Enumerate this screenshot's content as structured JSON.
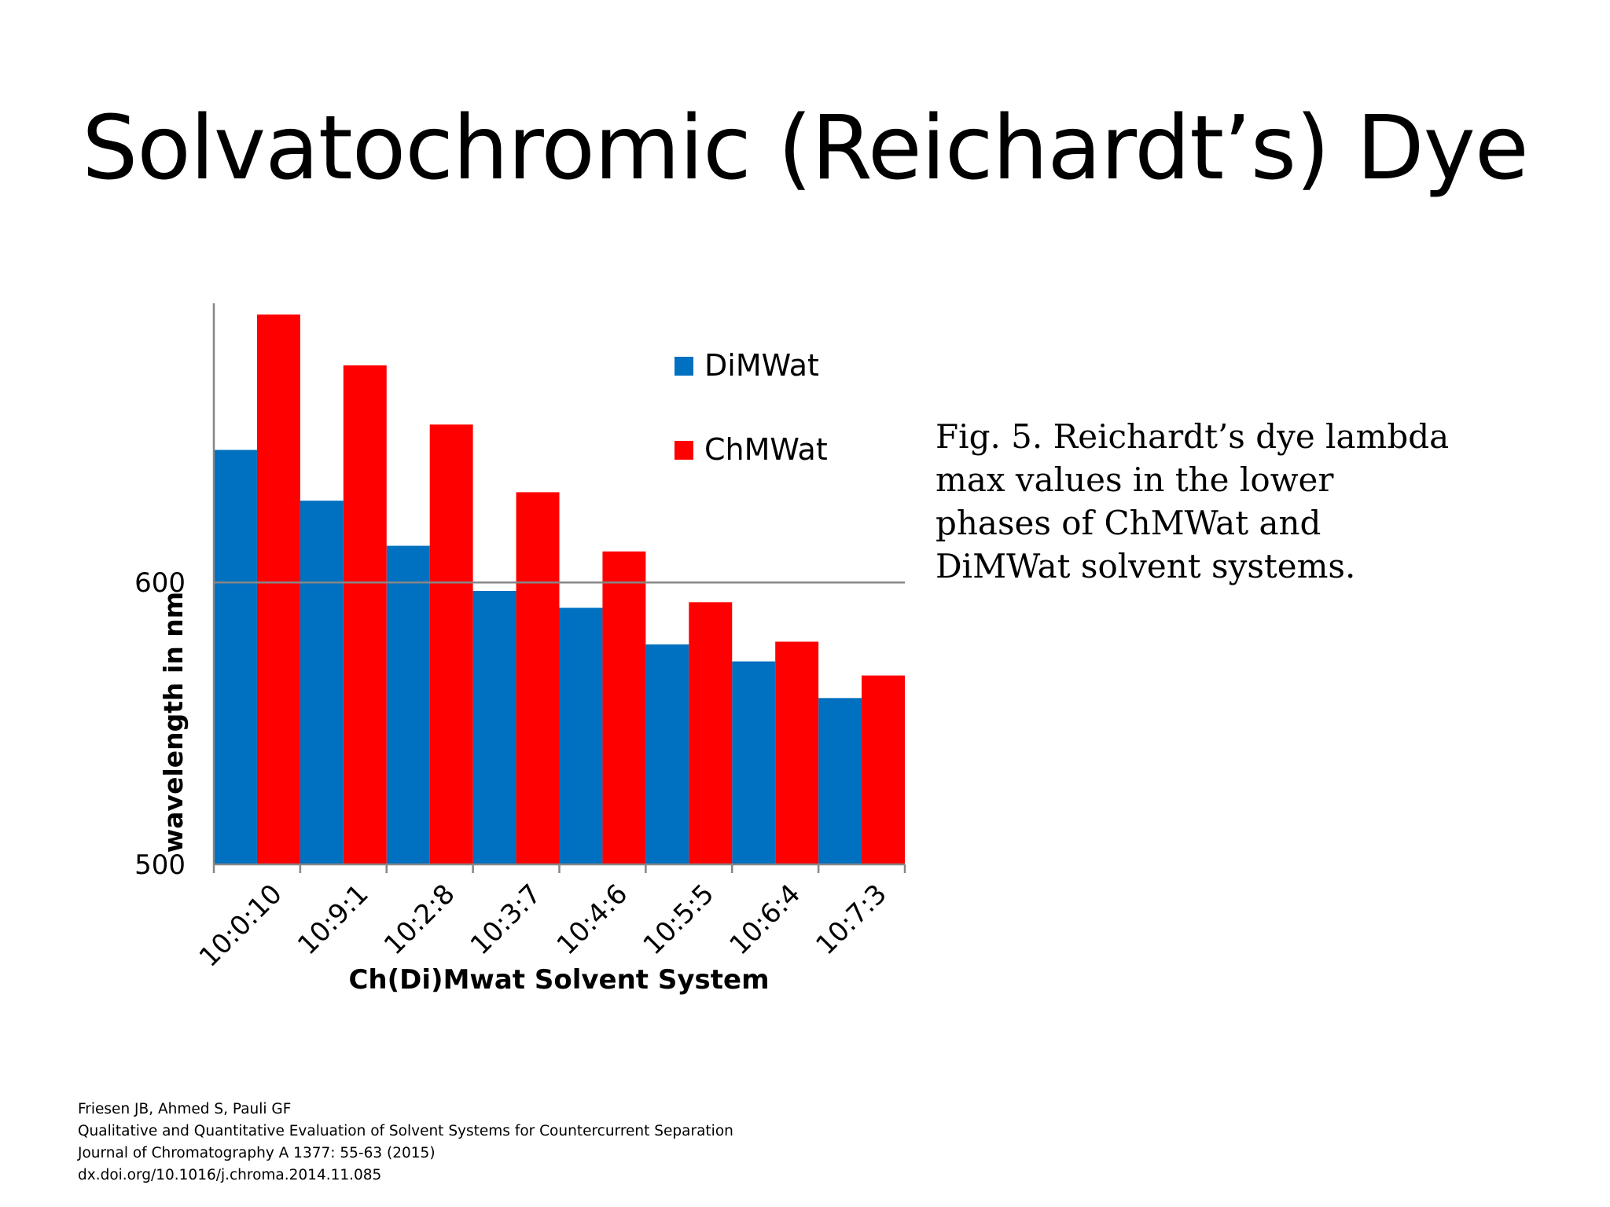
{
  "slide": {
    "title": "Solvatochromic (Reichardt’s) Dye",
    "caption": "Fig. 5. Reichardt’s dye lambda max values in the lower phases of ChMWat and DiMWat solvent systems.",
    "citation": [
      "Friesen JB, Ahmed S, Pauli GF",
      "Qualitative and Quantitative Evaluation of Solvent Systems for Countercurrent Separation",
      "Journal of Chromatography A 1377: 55-63 (2015)",
      "dx.doi.org/10.1016/j.chroma.2014.11.085"
    ]
  },
  "colors": {
    "series_a": "#0070c0",
    "series_b": "#ff0000",
    "axis": "#868686"
  },
  "chart_data": {
    "type": "bar",
    "title": "",
    "xlabel": "Ch(Di)Mwat Solvent System",
    "ylabel": "wavelength in nm",
    "categories": [
      "10:0:10",
      "10:9:1",
      "10:2:8",
      "10:3:7",
      "10:4:6",
      "10:5:5",
      "10:6:4",
      "10:7:3"
    ],
    "series": [
      {
        "name": "DiMWat",
        "values": [
          647,
          629,
          613,
          597,
          591,
          578,
          572,
          559
        ]
      },
      {
        "name": "ChMWat",
        "values": [
          695,
          677,
          656,
          632,
          611,
          593,
          579,
          567
        ]
      }
    ],
    "ylim": [
      500,
      699
    ],
    "yticks": [
      500,
      600
    ],
    "gridlines": [
      600
    ],
    "legend": "upper-right inside plot"
  }
}
